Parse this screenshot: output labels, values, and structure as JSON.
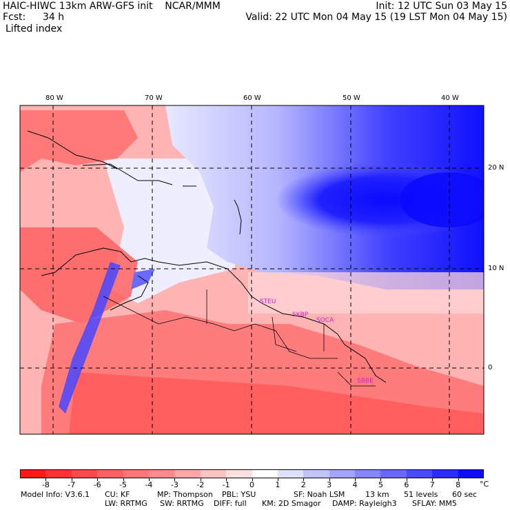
{
  "header": {
    "model_line": "HAIC-HIWC 13km ARW-GFS init    NCAR/MMM",
    "fcst_label": "Fcst:",
    "fcst_value": "34 h",
    "field_name": "Lifted index",
    "init": "Init: 12 UTC Sun 03 May 15",
    "valid": "Valid: 22 UTC Mon 04 May 15 (19 LST Mon 04 May 15)"
  },
  "map": {
    "lon_labels": [
      "80 W",
      "70 W",
      "60 W",
      "50 W",
      "40 W"
    ],
    "lat_labels": [
      "20 N",
      "10 N",
      "0"
    ],
    "stations": [
      "STEU",
      "SKBP",
      "SOCA",
      "SBBE"
    ]
  },
  "colorbar": {
    "labels": [
      "-8",
      "-7",
      "-6",
      "-5",
      "-4",
      "-3",
      "-2",
      "-1",
      "0",
      "1",
      "2",
      "3",
      "4",
      "5",
      "6",
      "7",
      "8"
    ],
    "unit": "°C",
    "colors": [
      "#ff1818",
      "#ff3333",
      "#ff4a4a",
      "#ff6060",
      "#ff7676",
      "#ff8c8c",
      "#ffa6a6",
      "#ffc2c2",
      "#ffe0e0",
      "#ffffff",
      "#e0e0ff",
      "#c2c2ff",
      "#a4a4ff",
      "#8686ff",
      "#6868ff",
      "#4a4aff",
      "#2c2cff",
      "#0e0eff"
    ]
  },
  "footer": {
    "line1": [
      "Model Info: V3.6.1",
      "CU: KF",
      "MP: Thompson",
      "PBL: YSU",
      "SF: Noah LSM",
      "13 km",
      "51 levels",
      "60 sec"
    ],
    "line2": [
      "LW: RRTMG",
      "SW: RRTMG",
      "DIFF: full",
      "KM: 2D Smagor",
      "DAMP: Rayleigh3",
      "SFLAY: MM5"
    ]
  }
}
